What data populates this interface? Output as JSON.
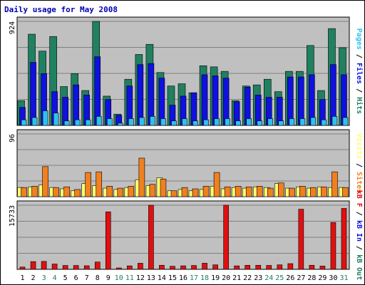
{
  "title": "Daily usage for May 2008",
  "colors": {
    "frame_bg": "#ffffff",
    "panel_bg": "#c0c0c0",
    "grid": "#808080",
    "title": "#0000b0",
    "hits": "#208060",
    "files": "#1010e0",
    "pages": "#30c0f0",
    "visits": "#ffff70",
    "sites": "#f08020",
    "kb_in": "#1010e0",
    "kb_out": "#208060",
    "kb_f": "#e01010",
    "weekend_label": "#208060",
    "weekday_label": "#000000"
  },
  "legends": {
    "top": [
      "Pages",
      "Files",
      "Hits"
    ],
    "middle": [
      "Visits",
      "Sites"
    ],
    "bottom": [
      "kB F",
      "kB In",
      "kB Out"
    ],
    "separator": "/"
  },
  "chart_data": [
    {
      "type": "bar",
      "panel": "hits-files-pages",
      "ymax_label": "924",
      "ylim": [
        0,
        924
      ],
      "grid": true,
      "x": [
        1,
        2,
        3,
        4,
        5,
        6,
        7,
        8,
        9,
        10,
        11,
        12,
        13,
        14,
        15,
        16,
        17,
        18,
        19,
        20,
        21,
        22,
        23,
        24,
        25,
        26,
        27,
        28,
        29,
        30,
        31
      ],
      "series": [
        {
          "name": "Hits",
          "values": [
            220,
            810,
            660,
            790,
            345,
            460,
            310,
            924,
            260,
            100,
            410,
            630,
            720,
            470,
            350,
            370,
            290,
            530,
            520,
            480,
            220,
            350,
            360,
            410,
            300,
            480,
            480,
            710,
            310,
            860,
            690
          ]
        },
        {
          "name": "Files",
          "values": [
            160,
            560,
            460,
            300,
            250,
            360,
            270,
            610,
            230,
            90,
            350,
            540,
            550,
            420,
            180,
            260,
            290,
            450,
            440,
            420,
            210,
            340,
            270,
            250,
            250,
            430,
            430,
            450,
            230,
            540,
            450
          ]
        },
        {
          "name": "Pages",
          "values": [
            50,
            70,
            130,
            110,
            40,
            50,
            50,
            80,
            60,
            20,
            60,
            70,
            80,
            60,
            40,
            60,
            40,
            50,
            60,
            60,
            40,
            60,
            40,
            60,
            40,
            60,
            60,
            70,
            50,
            80,
            70
          ]
        }
      ]
    },
    {
      "type": "bar",
      "panel": "visits-sites",
      "ymax_label": "96",
      "ylim": [
        0,
        96
      ],
      "grid": true,
      "x": [
        1,
        2,
        3,
        4,
        5,
        6,
        7,
        8,
        9,
        10,
        11,
        12,
        13,
        14,
        15,
        16,
        17,
        18,
        19,
        20,
        21,
        22,
        23,
        24,
        25,
        26,
        27,
        28,
        29,
        30,
        31
      ],
      "series": [
        {
          "name": "Visits",
          "values": [
            14,
            15,
            18,
            14,
            12,
            9,
            20,
            17,
            13,
            11,
            14,
            26,
            17,
            29,
            9,
            11,
            9,
            11,
            16,
            12,
            14,
            13,
            15,
            14,
            20,
            13,
            15,
            13,
            15,
            14,
            14
          ]
        },
        {
          "name": "Sites",
          "values": [
            14,
            16,
            46,
            14,
            15,
            11,
            37,
            38,
            16,
            13,
            16,
            59,
            19,
            27,
            9,
            14,
            12,
            16,
            37,
            15,
            16,
            15,
            16,
            13,
            21,
            13,
            16,
            14,
            15,
            38,
            14
          ]
        }
      ]
    },
    {
      "type": "bar",
      "panel": "kb-f-in-out",
      "ymax_label": "15733",
      "ylim": [
        0,
        15733
      ],
      "grid": true,
      "x": [
        1,
        2,
        3,
        4,
        5,
        6,
        7,
        8,
        9,
        10,
        11,
        12,
        13,
        14,
        15,
        16,
        17,
        18,
        19,
        20,
        21,
        22,
        23,
        24,
        25,
        26,
        27,
        28,
        29,
        30,
        31
      ],
      "series": [
        {
          "name": "kB F",
          "values": [
            560,
            1900,
            1950,
            1300,
            950,
            950,
            880,
            1800,
            14100,
            350,
            850,
            1500,
            15733,
            1000,
            750,
            860,
            950,
            1500,
            1100,
            15733,
            850,
            1000,
            1000,
            960,
            1100,
            1400,
            14750,
            1000,
            800,
            11500,
            14950
          ]
        }
      ]
    }
  ],
  "day_labels": [
    "1",
    "2",
    "3",
    "4",
    "5",
    "6",
    "7",
    "8",
    "9",
    "10",
    "11",
    "12",
    "13",
    "14",
    "15",
    "16",
    "17",
    "18",
    "19",
    "20",
    "21",
    "22",
    "23",
    "24",
    "25",
    "26",
    "27",
    "28",
    "29",
    "30",
    "31"
  ],
  "weekend_days": [
    3,
    4,
    10,
    11,
    17,
    18,
    24,
    25,
    31
  ]
}
